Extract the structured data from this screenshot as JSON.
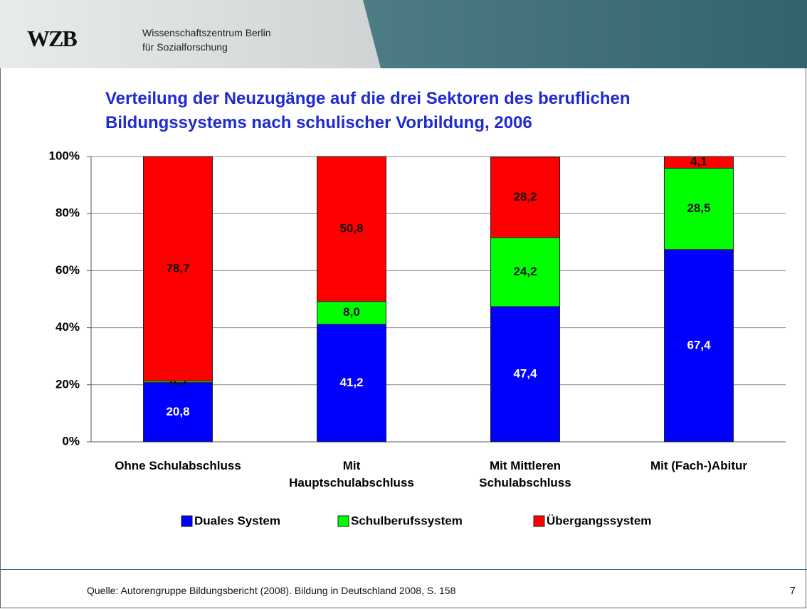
{
  "header": {
    "logo": "WZB",
    "institution_line1": "Wissenschaftszentrum Berlin",
    "institution_line2": "für Sozialforschung"
  },
  "chart_data": {
    "type": "stacked_bar",
    "title": "Verteilung der Neuzugänge auf die drei Sektoren des beruflichen\nBildungssystems nach schulischer Vorbildung, 2006",
    "categories": [
      "Ohne Schulabschluss",
      "Mit\nHauptschulabschluss",
      "Mit Mittleren\nSchulabschluss",
      "Mit (Fach-)Abitur"
    ],
    "series": [
      {
        "name": "Duales System",
        "color": "#0000ff",
        "values": [
          20.8,
          41.2,
          47.4,
          67.4
        ],
        "value_labels": [
          "20,8",
          "41,2",
          "47,4",
          "67,4"
        ]
      },
      {
        "name": "Schulberufssystem",
        "color": "#00ff00",
        "values": [
          0.5,
          8.0,
          24.2,
          28.5
        ],
        "value_labels": [
          "0,5",
          "8,0",
          "24,2",
          "28,5"
        ]
      },
      {
        "name": "Übergangssystem",
        "color": "#ff0000",
        "values": [
          78.7,
          50.8,
          28.2,
          4.1
        ],
        "value_labels": [
          "78,7",
          "50,8",
          "28,2",
          "4,1"
        ]
      }
    ],
    "ylim": [
      0,
      100
    ],
    "yticks": [
      {
        "value": 0,
        "label": "0%"
      },
      {
        "value": 20,
        "label": "20%"
      },
      {
        "value": 40,
        "label": "40%"
      },
      {
        "value": 60,
        "label": "60%"
      },
      {
        "value": 80,
        "label": "80%"
      },
      {
        "value": 100,
        "label": "100%"
      }
    ],
    "grid": true,
    "legend": "bottom"
  },
  "footer": {
    "source": "Quelle: Autorengruppe Bildungsbericht (2008). Bildung in Deutschland 2008, S. 158",
    "page_number": "7"
  }
}
